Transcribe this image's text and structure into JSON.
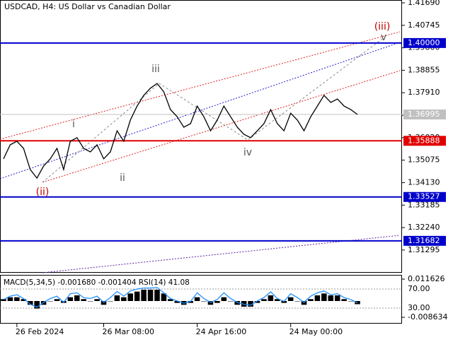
{
  "chart_data": {
    "type": "line",
    "title": "USDCAD, H4:  US Dollar vs Canadian Dollar",
    "color": "#000000",
    "categories": [
      null,
      null,
      "26 Feb 2024",
      null,
      null,
      null,
      null,
      null,
      null,
      null,
      null,
      null,
      null,
      null,
      null,
      "26 Mar 08:00",
      null,
      null,
      null,
      null,
      null,
      null,
      null,
      null,
      null,
      null,
      null,
      null,
      null,
      "24 Apr 16:00",
      null,
      null,
      null,
      null,
      null,
      null,
      null,
      null,
      null,
      null,
      null,
      null,
      null,
      "24 May 00:00",
      null,
      null,
      null,
      null,
      null,
      null,
      null,
      null,
      null,
      null
    ],
    "values": [
      1.3513,
      1.3572,
      1.3587,
      1.3557,
      1.3468,
      1.3432,
      1.3483,
      1.3513,
      1.3557,
      1.3468,
      1.3587,
      1.3602,
      1.3557,
      1.3542,
      1.3572,
      1.3513,
      1.3542,
      1.3631,
      1.3587,
      1.3676,
      1.3735,
      1.378,
      1.381,
      1.383,
      1.3795,
      1.372,
      1.369,
      1.3646,
      1.3661,
      1.3735,
      1.369,
      1.3631,
      1.3676,
      1.3735,
      1.369,
      1.3646,
      1.3616,
      1.3602,
      1.3631,
      1.3661,
      1.372,
      1.3661,
      1.3631,
      1.3705,
      1.3676,
      1.3631,
      1.369,
      1.3735,
      1.378,
      1.375,
      1.3765,
      1.3735,
      1.372,
      1.36995
    ],
    "ylim": [
      1.3037,
      1.4175
    ],
    "yticks": [
      {
        "value": 1.4169,
        "label": "1.41690"
      },
      {
        "value": 1.40745,
        "label": "1.40745"
      },
      {
        "value": 1.398,
        "label": "1.39800"
      },
      {
        "value": 1.38855,
        "label": "1.38855"
      },
      {
        "value": 1.3791,
        "label": "1.37910"
      },
      {
        "value": 1.36965,
        "label": "1.36965"
      },
      {
        "value": 1.3602,
        "label": "1.36020"
      },
      {
        "value": 1.35075,
        "label": "1.35075"
      },
      {
        "value": 1.3413,
        "label": "1.34130"
      },
      {
        "value": 1.33185,
        "label": "1.33185"
      },
      {
        "value": 1.3224,
        "label": "1.32240"
      },
      {
        "value": 1.31295,
        "label": "1.31295"
      }
    ],
    "grid": false,
    "current": {
      "value": 1.36995,
      "label": "1.36995",
      "color": "#c0c0c0"
    },
    "levels": [
      {
        "value": 1.4,
        "label": "1.40000",
        "color": "#0000cc"
      },
      {
        "value": 1.35888,
        "label": "1.35888",
        "color": "#e00000"
      },
      {
        "value": 1.33527,
        "label": "1.33527",
        "color": "#0000cc"
      },
      {
        "value": 1.31682,
        "label": "1.31682",
        "color": "#0000cc"
      }
    ],
    "annotations": [
      "(iii)",
      "v",
      "iii",
      "i",
      "ii",
      "(ii)",
      "iv"
    ],
    "macd": {
      "type": "bar",
      "label": "MACD(5,34,5) -0.001680 -0.001404 RSI(14) 41.08",
      "color": "#000000",
      "values": [
        0.001,
        0.002,
        0.002,
        0.001,
        -0.002,
        -0.004,
        -0.002,
        0,
        0.001,
        -0.001,
        0.002,
        0.003,
        0.001,
        0,
        0.001,
        -0.002,
        0,
        0.003,
        0.002,
        0.004,
        0.005,
        0.006,
        0.006,
        0.006,
        0.004,
        0.001,
        -0.001,
        -0.002,
        -0.001,
        0.002,
        0,
        -0.002,
        -0.001,
        0.002,
        0,
        -0.002,
        -0.003,
        -0.003,
        -0.001,
        0.001,
        0.003,
        0.001,
        -0.001,
        0.002,
        0,
        -0.002,
        0.001,
        0.003,
        0.004,
        0.003,
        0.003,
        0.001,
        0,
        -0.00168
      ],
      "ylim": [
        -0.012,
        0.0135
      ],
      "yticks": [
        0.011626,
        -0.008634
      ],
      "rsi": {
        "type": "line",
        "color": "#1e90ff",
        "values": [
          48,
          55,
          58,
          50,
          38,
          32,
          42,
          50,
          55,
          42,
          60,
          62,
          52,
          50,
          55,
          42,
          52,
          65,
          55,
          66,
          70,
          72,
          72,
          73,
          62,
          50,
          45,
          40,
          44,
          62,
          50,
          42,
          48,
          62,
          50,
          42,
          38,
          36,
          45,
          52,
          64,
          50,
          44,
          60,
          52,
          42,
          55,
          62,
          66,
          58,
          60,
          52,
          48,
          41.08
        ],
        "ylim": [
          -2.6,
          98.1
        ],
        "yticks": [
          {
            "value": 70,
            "label": "70.00"
          },
          {
            "value": 30,
            "label": "30.00"
          }
        ]
      }
    }
  }
}
